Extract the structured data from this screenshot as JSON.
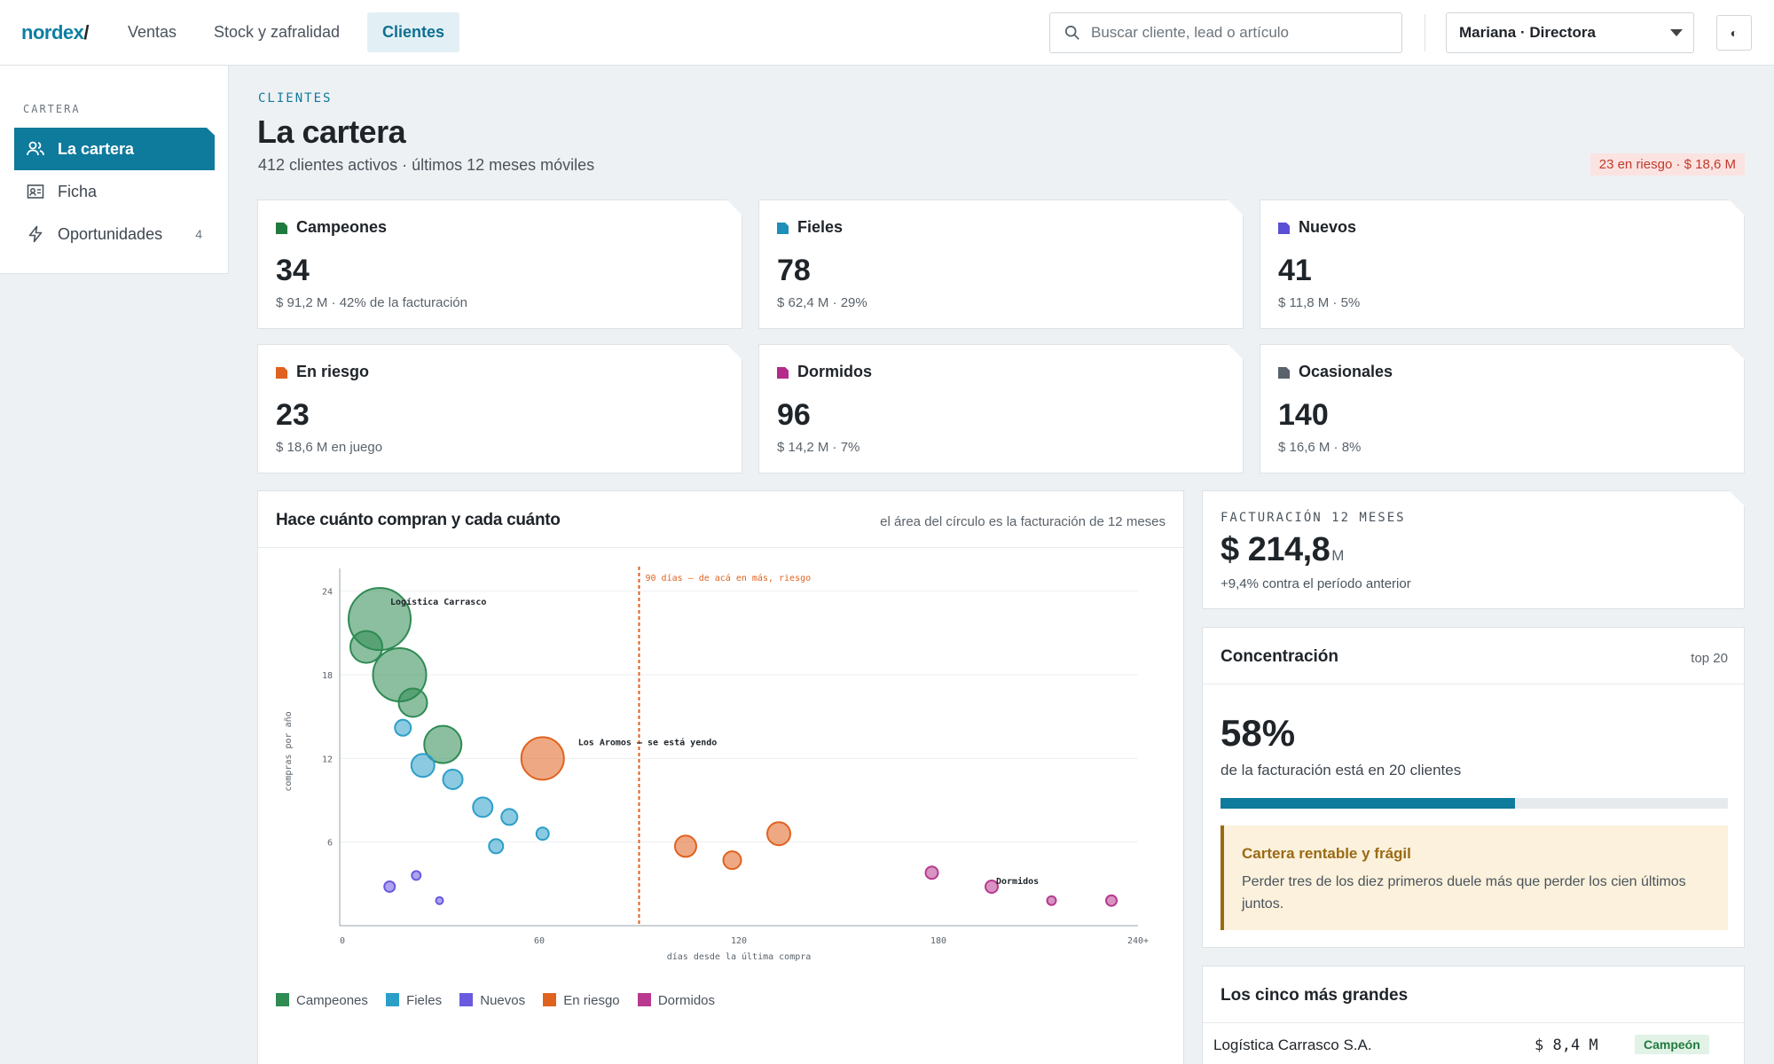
{
  "app": {
    "logo_text": "nordex",
    "logo_slash": "/"
  },
  "nav": {
    "tabs": [
      {
        "label": "Ventas",
        "active": false
      },
      {
        "label": "Stock y zafralidad",
        "active": false
      },
      {
        "label": "Clientes",
        "active": true
      }
    ]
  },
  "search": {
    "placeholder": "Buscar cliente, lead o artículo",
    "value": "",
    "icon": "search-icon"
  },
  "user": {
    "selected": "Mariana · Directora"
  },
  "theme_toggle": {
    "icon": "contrast-icon",
    "glyph": "◐"
  },
  "sidebar": {
    "heading": "CARTERA",
    "items": [
      {
        "label": "La cartera",
        "icon": "users-icon",
        "active": true,
        "count": ""
      },
      {
        "label": "Ficha",
        "icon": "id-card-icon",
        "active": false,
        "count": ""
      },
      {
        "label": "Oportunidades",
        "icon": "bolt-icon",
        "active": false,
        "count": "4"
      }
    ]
  },
  "header": {
    "eyebrow": "CLIENTES",
    "title": "La cartera",
    "subtitle": "412 clientes activos · últimos 12 meses móviles",
    "risk_badge": "23 en riesgo · $ 18,6 M"
  },
  "segments": [
    {
      "name": "Campeones",
      "count": "34",
      "meta": "$ 91,2 M · 42% de la facturación",
      "color": "#1f7a3e"
    },
    {
      "name": "Fieles",
      "count": "78",
      "meta": "$ 62,4 M · 29%",
      "color": "#1d8fb8"
    },
    {
      "name": "Nuevos",
      "count": "41",
      "meta": "$ 11,8 M · 5%",
      "color": "#5b4fd4"
    },
    {
      "name": "En riesgo",
      "count": "23",
      "meta": "$ 18,6 M en juego",
      "color": "#e0621f"
    },
    {
      "name": "Dormidos",
      "count": "96",
      "meta": "$ 14,2 M · 7%",
      "color": "#b32a8a"
    },
    {
      "name": "Ocasionales",
      "count": "140",
      "meta": "$ 16,6 M · 8%",
      "color": "#5a636b"
    }
  ],
  "chart": {
    "title": "Hace cuánto compran y cada cuánto",
    "note": "el área del círculo es la facturación de 12 meses",
    "legend": [
      {
        "label": "Campeones",
        "color": "#2e8b52"
      },
      {
        "label": "Fieles",
        "color": "#2c9fc8"
      },
      {
        "label": "Nuevos",
        "color": "#6a5ae0"
      },
      {
        "label": "En riesgo",
        "color": "#e0621f"
      },
      {
        "label": "Dormidos",
        "color": "#b83a8f"
      }
    ]
  },
  "chart_data": {
    "type": "scatter",
    "xlabel": "días desde la última compra",
    "ylabel": "compras por año",
    "xlim": [
      0,
      240
    ],
    "ylim": [
      0,
      25
    ],
    "x_ticks": [
      "0",
      "60",
      "120",
      "180",
      "240+"
    ],
    "y_ticks": [
      "6",
      "12",
      "18",
      "24"
    ],
    "grid": true,
    "threshold": {
      "x": 90,
      "label": "90 días — de acá en más, riesgo"
    },
    "series": [
      {
        "name": "Campeones",
        "color": "#2e8b52",
        "points": [
          {
            "x": 12,
            "y": 22,
            "r": 35,
            "label": "Logística Carrasco"
          },
          {
            "x": 8,
            "y": 20,
            "r": 18
          },
          {
            "x": 18,
            "y": 18,
            "r": 30
          },
          {
            "x": 22,
            "y": 16,
            "r": 16
          },
          {
            "x": 31,
            "y": 13,
            "r": 21
          }
        ]
      },
      {
        "name": "Fieles",
        "color": "#2c9fc8",
        "points": [
          {
            "x": 19,
            "y": 14.2,
            "r": 9
          },
          {
            "x": 25,
            "y": 11.5,
            "r": 13
          },
          {
            "x": 34,
            "y": 10.5,
            "r": 11
          },
          {
            "x": 43,
            "y": 8.5,
            "r": 11
          },
          {
            "x": 51,
            "y": 7.8,
            "r": 9
          },
          {
            "x": 47,
            "y": 5.7,
            "r": 8
          },
          {
            "x": 61,
            "y": 6.6,
            "r": 7
          }
        ]
      },
      {
        "name": "Nuevos",
        "color": "#6a5ae0",
        "points": [
          {
            "x": 15,
            "y": 2.8,
            "r": 6
          },
          {
            "x": 23,
            "y": 3.6,
            "r": 5
          },
          {
            "x": 30,
            "y": 1.8,
            "r": 4
          }
        ]
      },
      {
        "name": "En riesgo",
        "color": "#e0621f",
        "points": [
          {
            "x": 61,
            "y": 12,
            "r": 24,
            "label": "Los Aromos — se está yendo"
          },
          {
            "x": 104,
            "y": 5.7,
            "r": 12
          },
          {
            "x": 118,
            "y": 4.7,
            "r": 10
          },
          {
            "x": 132,
            "y": 6.6,
            "r": 13
          }
        ]
      },
      {
        "name": "Dormidos",
        "color": "#b83a8f",
        "points": [
          {
            "x": 178,
            "y": 3.8,
            "r": 7
          },
          {
            "x": 196,
            "y": 2.8,
            "r": 7,
            "label": "Dormidos"
          },
          {
            "x": 214,
            "y": 1.8,
            "r": 5
          },
          {
            "x": 232,
            "y": 1.8,
            "r": 6
          }
        ]
      }
    ]
  },
  "facturacion": {
    "label": "FACTURACIÓN 12 MESES",
    "value": "$ 214,8",
    "unit": "M",
    "change": "+9,4% contra el período anterior"
  },
  "concentracion": {
    "title": "Concentración",
    "tag": "top 20",
    "percent": "58%",
    "percent_value": 58,
    "description": "de la facturación está en 20 clientes",
    "callout_title": "Cartera rentable y frágil",
    "callout_body": "Perder tres de los diez primeros duele más que perder los cien últimos juntos."
  },
  "top5": {
    "title": "Los cinco más grandes",
    "rows": [
      {
        "name": "Logística Carrasco S.A.",
        "value": "$ 8,4 M",
        "badge": "Campeón"
      }
    ]
  }
}
